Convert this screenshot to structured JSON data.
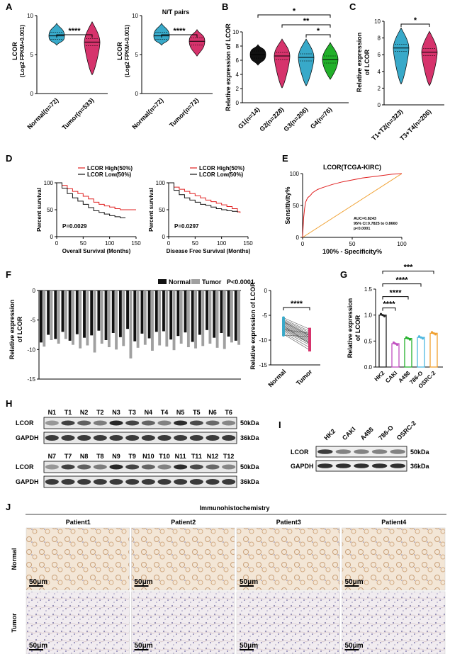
{
  "colors": {
    "normal": "#38a9c9",
    "tumor": "#d6336c",
    "black": "#111111",
    "gray": "#a0a0a0",
    "red": "#e02020",
    "orange": "#f0a030",
    "green": "#22b02a",
    "lightblue": "#4fb8e0",
    "purple": "#c04fc0",
    "hkcol": "#222222"
  },
  "panel_labels": [
    "A",
    "B",
    "C",
    "D",
    "E",
    "F",
    "G",
    "H",
    "I",
    "J"
  ],
  "chart_data": [
    {
      "id": "A1",
      "type": "violin",
      "title": "",
      "ylabel": "LCOR\n(Log2 FPKM+0.001)",
      "ylabel_lines": [
        "LCOR",
        "(Log2 FPKM+0.001)"
      ],
      "categories": [
        "Normal(n=72)",
        "Tumor(n=533)"
      ],
      "medians": [
        7.4,
        6.6
      ],
      "ranges": [
        [
          6.2,
          9.0
        ],
        [
          2.4,
          9.2
        ]
      ],
      "ylim": [
        0,
        10
      ],
      "yticks": [
        "0",
        "5",
        "10"
      ],
      "sig": "****"
    },
    {
      "id": "A2",
      "type": "violin",
      "title": "N/T pairs",
      "ylabel_lines": [
        "LCOR",
        "(Log2 FPKM+0.001)"
      ],
      "categories": [
        "Normal(n=72)",
        "Tumor(n=72)"
      ],
      "medians": [
        7.4,
        6.7
      ],
      "ranges": [
        [
          6.2,
          9.0
        ],
        [
          4.8,
          8.2
        ]
      ],
      "ylim": [
        0,
        10
      ],
      "yticks": [
        "0",
        "5",
        "10"
      ],
      "sig": "****"
    },
    {
      "id": "B",
      "type": "violin",
      "ylabel": "Relative expression of LCOR",
      "categories": [
        "G1(n=14)",
        "G2(n=228)",
        "G3(n=206)",
        "G4(n=76)"
      ],
      "medians": [
        6.8,
        6.6,
        6.4,
        6.1
      ],
      "ranges": [
        [
          5.3,
          8.2
        ],
        [
          2.1,
          9.0
        ],
        [
          2.4,
          9.0
        ],
        [
          3.3,
          8.5
        ]
      ],
      "ylim": [
        0,
        10
      ],
      "yticks": [
        "0",
        "2",
        "4",
        "6",
        "8",
        "10"
      ],
      "sig": [
        "*",
        "**",
        "*"
      ]
    },
    {
      "id": "C",
      "type": "violin",
      "ylabel_lines": [
        "Relative expression",
        "of LCOR"
      ],
      "categories": [
        "T1+T2(n=323)",
        "T3+T4(n=206)"
      ],
      "medians": [
        6.8,
        6.3
      ],
      "ranges": [
        [
          2.5,
          9.2
        ],
        [
          2.3,
          8.8
        ]
      ],
      "ylim": [
        0,
        10
      ],
      "yticks": [
        "0",
        "2",
        "4",
        "6",
        "8",
        "10"
      ],
      "sig": "*"
    },
    {
      "id": "D1",
      "type": "line",
      "xlabel": "Overall Survival (Months)",
      "ylabel": "Percent survival",
      "legend": [
        "LCOR High(50%)",
        "LCOR Low(50%)"
      ],
      "p": "P=0.0029",
      "series": [
        {
          "name": "High",
          "x": [
            0,
            10,
            20,
            30,
            40,
            50,
            60,
            70,
            80,
            90,
            100,
            110,
            120,
            130,
            150
          ],
          "y": [
            100,
            95,
            89,
            84,
            80,
            75,
            70,
            64,
            60,
            57,
            55,
            52,
            50,
            50,
            50
          ]
        },
        {
          "name": "Low",
          "x": [
            0,
            10,
            20,
            30,
            40,
            50,
            60,
            70,
            80,
            90,
            100,
            110,
            120,
            130
          ],
          "y": [
            100,
            90,
            80,
            72,
            66,
            60,
            54,
            48,
            45,
            42,
            39,
            37,
            35,
            35
          ]
        }
      ],
      "xticks": [
        "0",
        "50",
        "100",
        "150"
      ],
      "yticks": [
        "0",
        "50",
        "100"
      ]
    },
    {
      "id": "D2",
      "type": "line",
      "xlabel": "Disease Free Survival (Months)",
      "ylabel": "Percent survival",
      "legend": [
        "LCOR High(50%)",
        "LCOR Low(50%)"
      ],
      "p": "P=0.0297",
      "series": [
        {
          "name": "High",
          "x": [
            0,
            10,
            20,
            30,
            40,
            50,
            60,
            70,
            80,
            90,
            100,
            110,
            120,
            130,
            135
          ],
          "y": [
            100,
            92,
            88,
            84,
            80,
            76,
            72,
            68,
            65,
            62,
            59,
            56,
            52,
            46,
            44
          ]
        },
        {
          "name": "Low",
          "x": [
            0,
            10,
            20,
            30,
            40,
            50,
            60,
            70,
            80,
            90,
            100,
            110,
            120,
            130
          ],
          "y": [
            100,
            86,
            78,
            72,
            68,
            64,
            60,
            58,
            55,
            52,
            50,
            48,
            47,
            45
          ]
        }
      ],
      "xticks": [
        "0",
        "50",
        "100",
        "150"
      ],
      "yticks": [
        "0",
        "50",
        "100"
      ]
    },
    {
      "id": "E",
      "type": "line",
      "title": "LCOR(TCGA-KIRC)",
      "xlabel": "100% - Specificity%",
      "ylabel": "Sensitivity%",
      "annot": [
        "AUC=0.8243",
        "95% CI:0.7825 to 0.8660",
        "p<0.0001"
      ],
      "roc": {
        "x": [
          0,
          1,
          2,
          3,
          5,
          8,
          10,
          15,
          20,
          30,
          40,
          50,
          60,
          70,
          80,
          90,
          100
        ],
        "y": [
          0,
          30,
          45,
          55,
          62,
          66,
          70,
          75,
          78,
          83,
          87,
          90,
          93,
          95,
          97,
          99,
          100
        ]
      },
      "xticks": [
        "0",
        "50",
        "100"
      ],
      "yticks": [
        "0",
        "50",
        "100"
      ]
    },
    {
      "id": "F1",
      "type": "bar",
      "legend": [
        "Normal",
        "Tumor"
      ],
      "p": "P<0.0001",
      "ylabel_lines": [
        "Relative expression",
        "of LCOR"
      ],
      "normal": [
        -8.8,
        -7.5,
        -8.2,
        -7.0,
        -8.5,
        -7.4,
        -8.0,
        -7.6,
        -6.8,
        -8.4,
        -7.2,
        -7.9,
        -6.5,
        -8.6,
        -7.3,
        -8.1,
        -7.0,
        -6.9,
        -8.3,
        -7.7,
        -7.1,
        -8.7,
        -7.5,
        -6.7,
        -8.0,
        -7.2,
        -7.8,
        -8.5
      ],
      "tumor": [
        -9.5,
        -8.4,
        -9.0,
        -8.2,
        -9.2,
        -9.8,
        -9.3,
        -10.5,
        -9.0,
        -9.6,
        -10.0,
        -9.4,
        -11.5,
        -9.7,
        -9.2,
        -10.2,
        -9.3,
        -9.5,
        -10.1,
        -9.0,
        -9.6,
        -9.8,
        -9.4,
        -9.0,
        -9.7,
        -9.9,
        -8.8,
        -9.2
      ],
      "ylim": [
        -15,
        0
      ],
      "yticks": [
        "0",
        "-5",
        "-10",
        "-15"
      ]
    },
    {
      "id": "F2",
      "type": "scatter",
      "ylabel": "Relative expression of LCOR",
      "categories": [
        "Normal",
        "Tumor"
      ],
      "sig": "****",
      "normal_vals": [
        -5.5,
        -5.8,
        -6.0,
        -6.2,
        -6.4,
        -6.6,
        -6.8,
        -7.0,
        -7.2,
        -7.4,
        -7.6,
        -7.8,
        -8.0,
        -8.2,
        -8.5,
        -8.8,
        -9.0,
        -7.1,
        -6.3,
        -7.9
      ],
      "tumor_vals": [
        -7.8,
        -8.2,
        -8.5,
        -8.8,
        -9.0,
        -9.2,
        -9.4,
        -9.6,
        -9.8,
        -10.0,
        -10.2,
        -10.4,
        -10.6,
        -11.0,
        -11.5,
        -12.0,
        -9.3,
        -10.8,
        -9.1,
        -8.6
      ],
      "ylim": [
        -15,
        0
      ],
      "yticks": [
        "0",
        "-5",
        "-10",
        "-15"
      ]
    },
    {
      "id": "G",
      "type": "bar",
      "ylabel_lines": [
        "Relative expression",
        "of LCOR"
      ],
      "categories": [
        "HK2",
        "CAKI",
        "A498",
        "786-O",
        "OSRC-2"
      ],
      "values": [
        1.0,
        0.45,
        0.55,
        0.57,
        0.65
      ],
      "ylim": [
        0,
        1.5
      ],
      "yticks": [
        "0.0",
        "0.5",
        "1.0",
        "1.5"
      ],
      "sig": [
        "****",
        "****",
        "****",
        "***"
      ]
    }
  ],
  "blotH": {
    "row1": [
      "N1",
      "T1",
      "N2",
      "T2",
      "N3",
      "T3",
      "N4",
      "T4",
      "N5",
      "T5",
      "N6",
      "T6"
    ],
    "row2": [
      "N7",
      "T7",
      "N8",
      "T8",
      "N9",
      "T9",
      "N10",
      "T10",
      "N11",
      "T11",
      "N12",
      "T12"
    ],
    "bands": [
      "LCOR",
      "GAPDH"
    ],
    "kda": [
      "50kDa",
      "36kDa"
    ]
  },
  "blotI": {
    "lanes": [
      "HK2",
      "CAKI",
      "A498",
      "786-O",
      "OSRC-2"
    ],
    "bands": [
      "LCOR",
      "GAPDH"
    ],
    "kda": [
      "50kDa",
      "36kDa"
    ]
  },
  "ihc": {
    "title": "Immunohistochemistry",
    "patients": [
      "Patient1",
      "Patient2",
      "Patient3",
      "Patient4"
    ],
    "rows": [
      "Normal",
      "Tumor"
    ],
    "scale": "50μm"
  }
}
